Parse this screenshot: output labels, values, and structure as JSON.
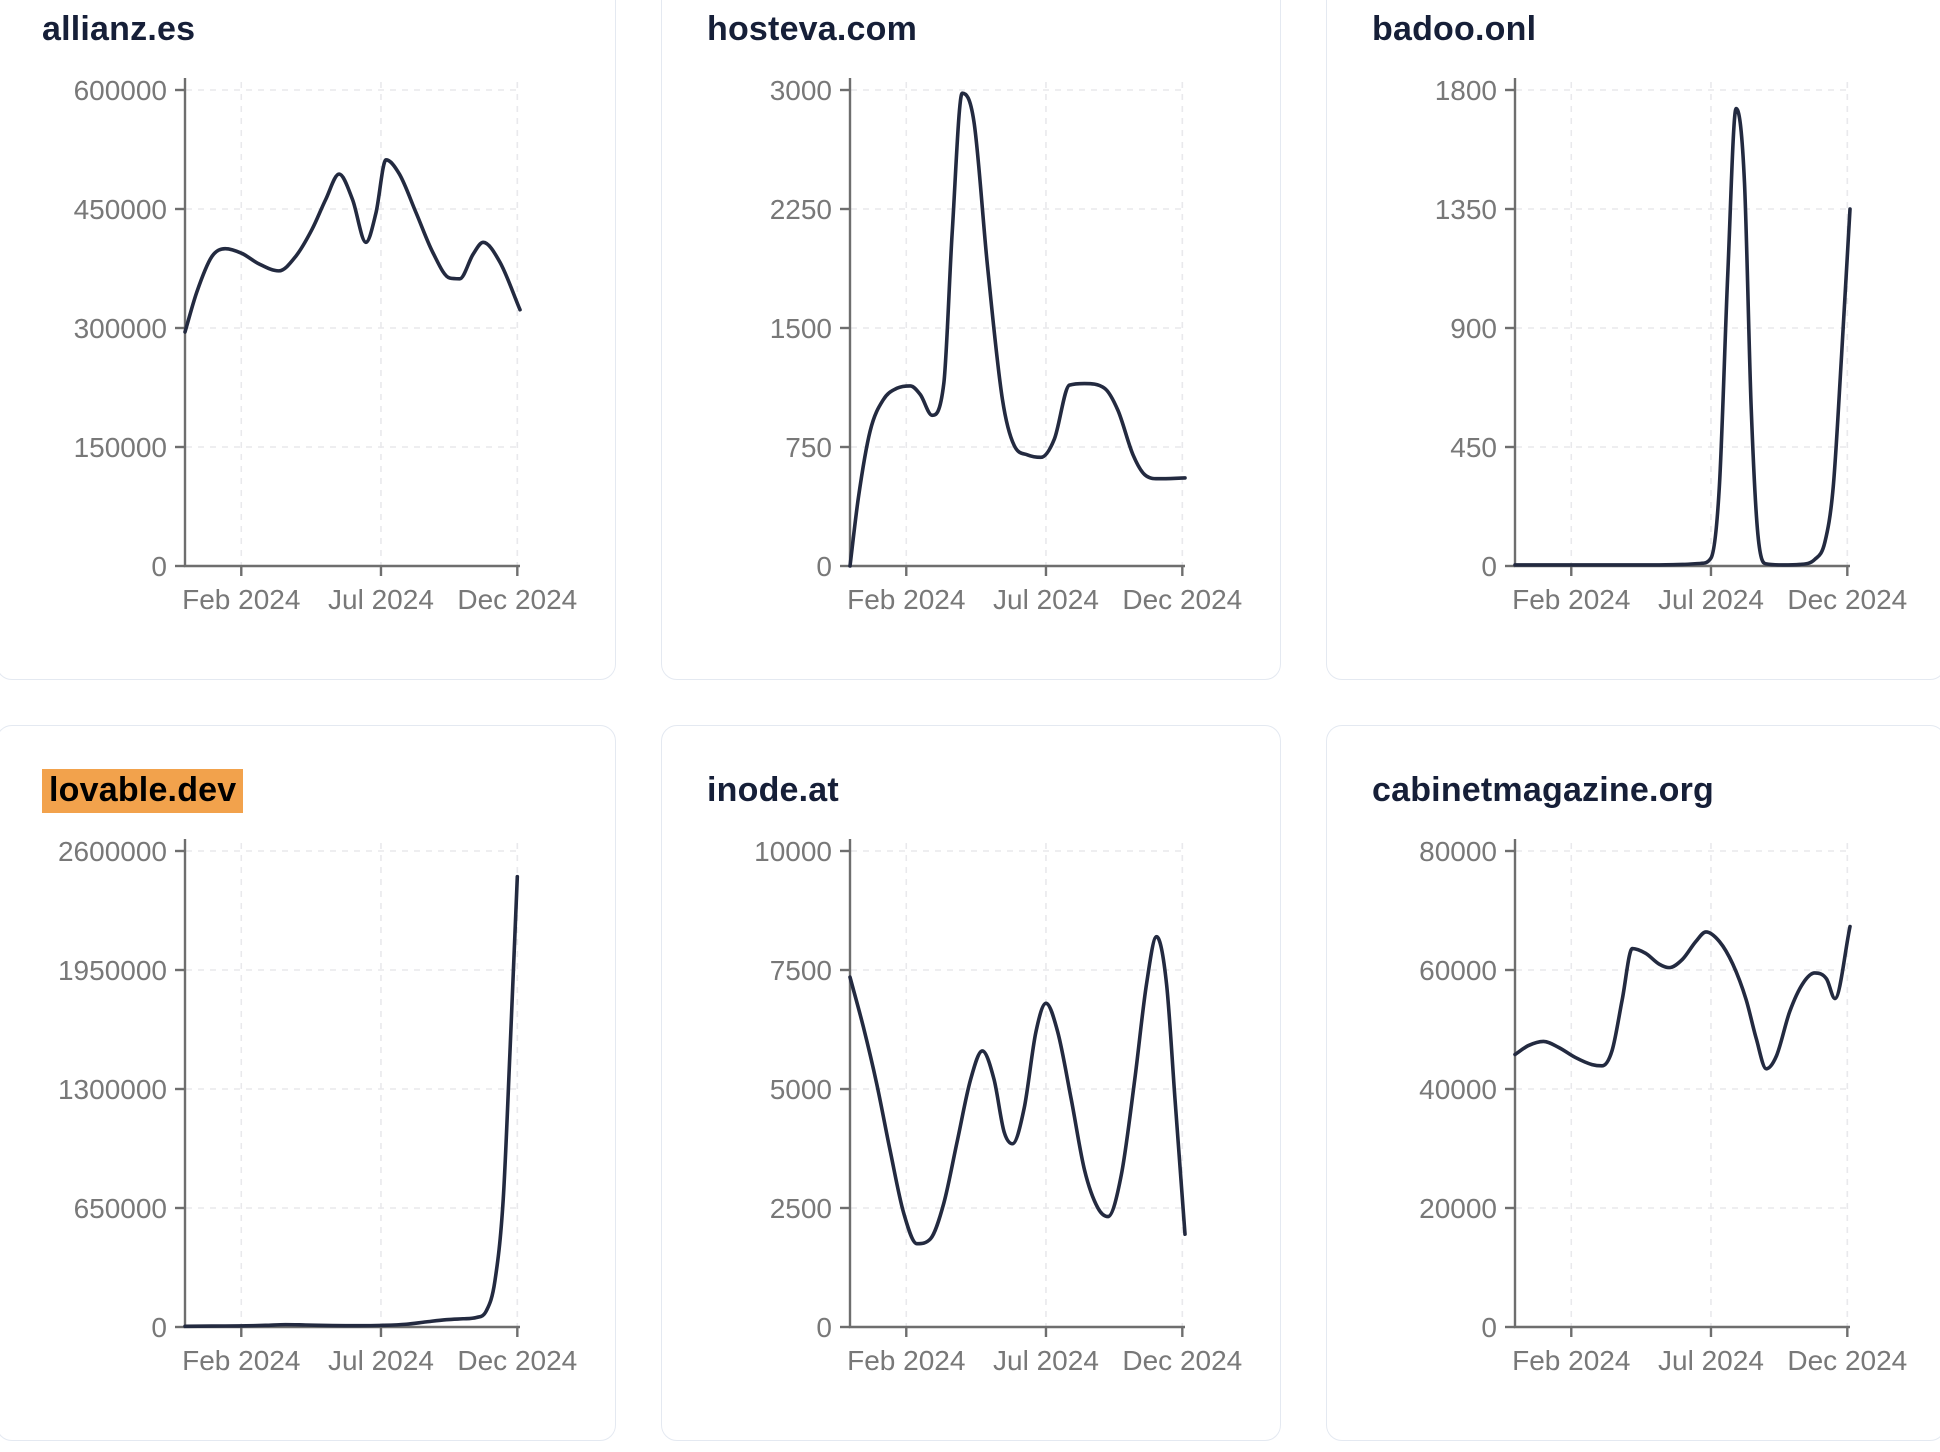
{
  "styles": {
    "line_color": "#232a40",
    "axis_color": "#6e6e6e",
    "grid_color": "#e9e9ec",
    "tick_label_color": "#787878",
    "title_color": "#161f38",
    "card_border_color": "#e4e9f1",
    "card_bg": "#ffffff",
    "page_bg": "#ffffff",
    "highlight_bg": "#f2a24c",
    "highlight_text_color": "#000000"
  },
  "chart_data": [
    {
      "type": "line",
      "title": "allianz.es",
      "highlighted": false,
      "ylim": [
        0,
        600000
      ],
      "y_ticks": [
        0,
        150000,
        300000,
        450000,
        600000
      ],
      "x_tick_labels": [
        "Feb 2024",
        "Jul 2024",
        "Dec 2024"
      ],
      "x_tick_positions": [
        0.168,
        0.585,
        0.992
      ],
      "grid": true,
      "x": [
        0,
        0.035,
        0.08,
        0.12,
        0.17,
        0.22,
        0.28,
        0.33,
        0.38,
        0.42,
        0.46,
        0.5,
        0.54,
        0.57,
        0.6,
        0.64,
        0.69,
        0.74,
        0.79,
        0.82,
        0.86,
        0.89,
        0.94,
        1.0
      ],
      "y": [
        295000,
        345000,
        390000,
        400000,
        394000,
        381000,
        372000,
        390000,
        425000,
        462000,
        494000,
        462000,
        408000,
        445000,
        512000,
        494000,
        445000,
        395000,
        363000,
        362000,
        393000,
        408000,
        383000,
        323000
      ]
    },
    {
      "type": "line",
      "title": "hosteva.com",
      "highlighted": false,
      "ylim": [
        0,
        3000
      ],
      "y_ticks": [
        0,
        750,
        1500,
        2250,
        3000
      ],
      "x_tick_labels": [
        "Feb 2024",
        "Jul 2024",
        "Dec 2024"
      ],
      "x_tick_positions": [
        0.168,
        0.585,
        0.992
      ],
      "grid": true,
      "x": [
        0,
        0.025,
        0.06,
        0.1,
        0.14,
        0.18,
        0.21,
        0.245,
        0.28,
        0.305,
        0.335,
        0.37,
        0.41,
        0.455,
        0.49,
        0.53,
        0.57,
        0.61,
        0.655,
        0.7,
        0.76,
        0.8,
        0.845,
        0.88,
        0.92,
        1.0
      ],
      "y": [
        0,
        430,
        850,
        1050,
        1120,
        1135,
        1080,
        950,
        1150,
        2100,
        2980,
        2800,
        1900,
        1050,
        760,
        700,
        685,
        800,
        1140,
        1150,
        1120,
        980,
        700,
        575,
        550,
        555
      ]
    },
    {
      "type": "line",
      "title": "badoo.onl",
      "highlighted": false,
      "ylim": [
        0,
        1800
      ],
      "y_ticks": [
        0,
        450,
        900,
        1350,
        1800
      ],
      "x_tick_labels": [
        "Feb 2024",
        "Jul 2024",
        "Dec 2024"
      ],
      "x_tick_positions": [
        0.168,
        0.585,
        0.992
      ],
      "grid": true,
      "x": [
        0,
        0.1,
        0.2,
        0.3,
        0.4,
        0.5,
        0.555,
        0.585,
        0.61,
        0.635,
        0.66,
        0.685,
        0.705,
        0.725,
        0.75,
        0.8,
        0.85,
        0.895,
        0.925,
        0.95,
        0.975,
        1.0
      ],
      "y": [
        4,
        4,
        4,
        4,
        4,
        6,
        10,
        30,
        300,
        1100,
        1730,
        1450,
        600,
        120,
        8,
        4,
        6,
        25,
        90,
        300,
        800,
        1350
      ]
    },
    {
      "type": "line",
      "title": "lovable.dev",
      "highlighted": true,
      "ylim": [
        0,
        2600000
      ],
      "y_ticks": [
        0,
        650000,
        1300000,
        1950000,
        2600000
      ],
      "x_tick_labels": [
        "Feb 2024",
        "Jul 2024",
        "Dec 2024"
      ],
      "x_tick_positions": [
        0.168,
        0.585,
        0.992
      ],
      "grid": true,
      "x": [
        0,
        0.08,
        0.16,
        0.24,
        0.3,
        0.36,
        0.44,
        0.52,
        0.59,
        0.66,
        0.72,
        0.78,
        0.83,
        0.87,
        0.9,
        0.925,
        0.95,
        0.97,
        0.992
      ],
      "y": [
        4000,
        5000,
        6000,
        9000,
        13000,
        11000,
        8000,
        7000,
        9000,
        15000,
        28000,
        40000,
        45000,
        52000,
        90000,
        250000,
        700000,
        1500000,
        2460000
      ]
    },
    {
      "type": "line",
      "title": "inode.at",
      "highlighted": false,
      "ylim": [
        0,
        10000
      ],
      "y_ticks": [
        0,
        2500,
        5000,
        7500,
        10000
      ],
      "x_tick_labels": [
        "Feb 2024",
        "Jul 2024",
        "Dec 2024"
      ],
      "x_tick_positions": [
        0.168,
        0.585,
        0.992
      ],
      "grid": true,
      "x": [
        0,
        0.04,
        0.08,
        0.12,
        0.16,
        0.2,
        0.24,
        0.28,
        0.32,
        0.36,
        0.395,
        0.43,
        0.46,
        0.485,
        0.52,
        0.555,
        0.585,
        0.62,
        0.66,
        0.7,
        0.74,
        0.77,
        0.81,
        0.85,
        0.885,
        0.915,
        0.945,
        0.97,
        1.0
      ],
      "y": [
        7350,
        6300,
        5100,
        3700,
        2400,
        1750,
        1850,
        2600,
        3900,
        5200,
        5800,
        5200,
        4100,
        3850,
        4600,
        6200,
        6800,
        6200,
        4800,
        3300,
        2500,
        2320,
        3200,
        5200,
        7200,
        8200,
        7200,
        4800,
        1950
      ]
    },
    {
      "type": "line",
      "title": "cabinetmagazine.org",
      "highlighted": false,
      "ylim": [
        0,
        80000
      ],
      "y_ticks": [
        0,
        20000,
        40000,
        60000,
        80000
      ],
      "x_tick_labels": [
        "Feb 2024",
        "Jul 2024",
        "Dec 2024"
      ],
      "x_tick_positions": [
        0.168,
        0.585,
        0.992
      ],
      "grid": true,
      "x": [
        0,
        0.04,
        0.085,
        0.13,
        0.18,
        0.23,
        0.26,
        0.29,
        0.32,
        0.35,
        0.39,
        0.43,
        0.46,
        0.5,
        0.54,
        0.57,
        0.61,
        0.65,
        0.69,
        0.72,
        0.75,
        0.78,
        0.82,
        0.86,
        0.895,
        0.93,
        0.955,
        1.0
      ],
      "y": [
        45800,
        47300,
        48000,
        47000,
        45300,
        44100,
        43900,
        46500,
        55000,
        63600,
        62800,
        61000,
        60400,
        61800,
        64800,
        66400,
        64800,
        61000,
        55000,
        48500,
        43400,
        45500,
        53000,
        57800,
        59500,
        58500,
        55200,
        67300
      ]
    }
  ]
}
